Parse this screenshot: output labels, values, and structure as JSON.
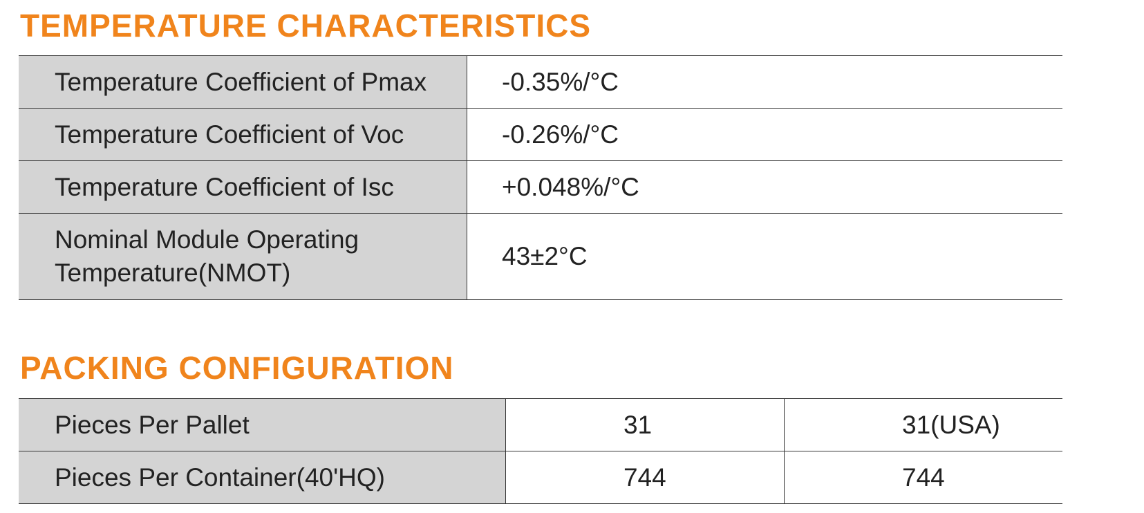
{
  "sections": [
    {
      "title": "TEMPERATURE CHARACTERISTICS",
      "rows": [
        [
          "Temperature Coefficient of Pmax",
          "-0.35%/°C"
        ],
        [
          "Temperature Coefficient of Voc",
          "-0.26%/°C"
        ],
        [
          "Temperature Coefficient of Isc",
          "+0.048%/°C"
        ],
        [
          "Nominal Module Operating Temperature(NMOT)",
          "43±2°C"
        ]
      ]
    },
    {
      "title": "PACKING CONFIGURATION",
      "rows": [
        [
          "Pieces Per Pallet",
          "31",
          "31(USA)"
        ],
        [
          "Pieces Per Container(40'HQ)",
          "744",
          "744"
        ]
      ]
    }
  ]
}
